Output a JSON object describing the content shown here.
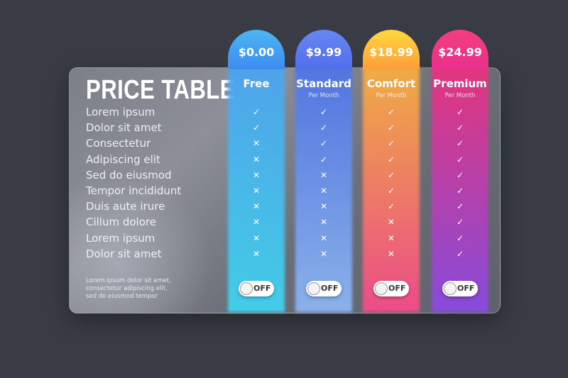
{
  "title": "PRICE TABLE",
  "features": [
    "Lorem ipsum",
    "Dolor sit amet",
    "Consectetur",
    "Adipiscing elit",
    "Sed do eiusmod",
    "Tempor incididunt",
    "Duis aute irure",
    "Cillum dolore",
    "Lorem ipsum",
    "Dolor sit amet"
  ],
  "footer": [
    "Lorem ipsum dolor sit amet,",
    "consectetur adipiscing elit,",
    "sed do eiusmod tempor"
  ],
  "plans": [
    {
      "price": "$0.00",
      "name": "Free",
      "colors": [
        "#4ab6f4",
        "#3f8cef"
      ],
      "glow": [
        "#49a6f2",
        "#3fd8f5"
      ],
      "included": [
        true,
        true,
        false,
        false,
        false,
        false,
        false,
        false,
        false,
        false
      ],
      "toggle": "OFF"
    },
    {
      "price": "$9.99",
      "name": "Standard",
      "subtitle": "Per Month",
      "colors": [
        "#6a86f2",
        "#4f6fec"
      ],
      "glow": [
        "#4d74ea",
        "#8fbaf8"
      ],
      "included": [
        true,
        true,
        true,
        true,
        false,
        false,
        false,
        false,
        false,
        false
      ],
      "toggle": "OFF"
    },
    {
      "price": "$18.99",
      "name": "Comfort",
      "subtitle": "Per Month",
      "colors": [
        "#fdd93c",
        "#fd9d3b"
      ],
      "glow": [
        "#fdb23e",
        "#fb4a8c"
      ],
      "included": [
        true,
        true,
        true,
        true,
        true,
        true,
        true,
        false,
        false,
        false
      ],
      "toggle": "OFF"
    },
    {
      "price": "$24.99",
      "name": "Premium",
      "subtitle": "Per Month",
      "colors": [
        "#f43e7e",
        "#e8308e"
      ],
      "glow": [
        "#f0307d",
        "#8b4ae8"
      ],
      "included": [
        true,
        true,
        true,
        true,
        true,
        true,
        true,
        true,
        true,
        true
      ],
      "toggle": "OFF"
    }
  ]
}
